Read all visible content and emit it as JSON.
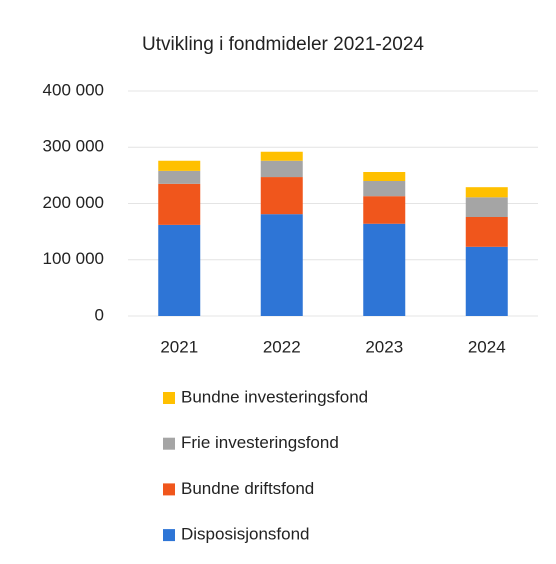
{
  "chart_data": {
    "type": "stacked-bar",
    "title": "Utvikling i fondmideler 2021-2024",
    "categories": [
      "2021",
      "2022",
      "2023",
      "2024"
    ],
    "series": [
      {
        "name": "Disposisjonsfond",
        "color": "#2e75d6",
        "values": [
          162000,
          181000,
          164000,
          123000
        ]
      },
      {
        "name": "Bundne driftsfond",
        "color": "#f0561c",
        "values": [
          73000,
          66000,
          49000,
          53000
        ]
      },
      {
        "name": "Frie investeringsfond",
        "color": "#a5a5a5",
        "values": [
          23000,
          29000,
          27000,
          35000
        ]
      },
      {
        "name": "Bundne investeringsfond",
        "color": "#ffc000",
        "values": [
          18000,
          16000,
          16000,
          18000
        ]
      }
    ],
    "ylim": [
      0,
      400000
    ],
    "yticks": [
      {
        "value": 0,
        "label": "0"
      },
      {
        "value": 100000,
        "label": "100 000"
      },
      {
        "value": 200000,
        "label": "200 000"
      },
      {
        "value": 300000,
        "label": "300 000"
      },
      {
        "value": 400000,
        "label": "400 000"
      }
    ],
    "grid": true
  }
}
